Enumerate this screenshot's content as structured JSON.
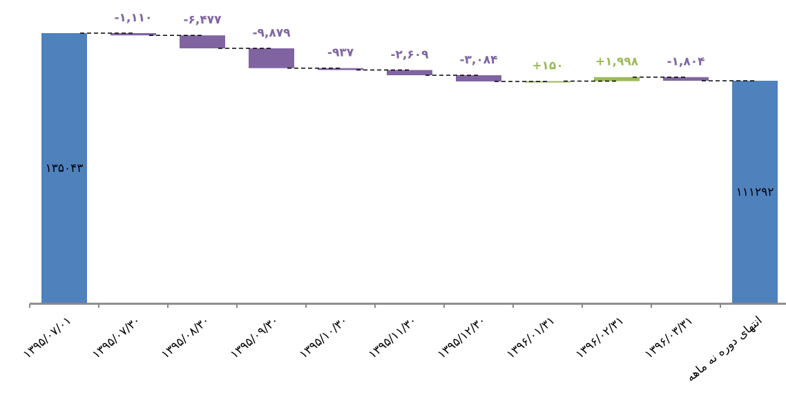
{
  "chart_data": {
    "type": "waterfall",
    "categories": [
      "۱۳۹۵/۰۷/۰۱",
      "۱۳۹۵/۰۷/۳۰",
      "۱۳۹۵/۰۸/۳۰",
      "۱۳۹۵/۰۹/۳۰",
      "۱۳۹۵/۱۰/۳۰",
      "۱۳۹۵/۱۱/۳۰",
      "۱۳۹۵/۱۲/۳۰",
      "۱۳۹۶/۰۱/۳۱",
      "۱۳۹۶/۰۲/۳۱",
      "۱۳۹۶/۰۳/۳۱",
      "انتهای دوره نه ماهه"
    ],
    "values": [
      135043,
      -1110,
      -6477,
      -9879,
      -937,
      -2609,
      -3084,
      150,
      1998,
      -1804,
      111292
    ],
    "value_labels": [
      "۱۳۵۰۴۳",
      "-۱,۱۱۰",
      "-۶,۴۷۷",
      "-۹,۸۷۹",
      "-۹۳۷",
      "-۲,۶۰۹",
      "-۳,۰۸۴",
      "+۱۵۰",
      "+۱,۹۹۸",
      "-۱,۸۰۴",
      "۱۱۱۲۹۲"
    ],
    "total_color": "#4f81bd",
    "decrease_color": "#8064a2",
    "increase_color": "#9bbb59"
  }
}
